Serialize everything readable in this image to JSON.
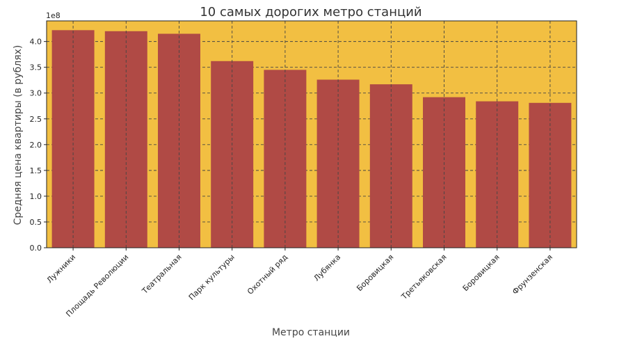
{
  "chart_data": {
    "type": "bar",
    "title": "10 самых дорогих метро станций",
    "xlabel": "Метро станции",
    "ylabel": "Средняя цена квартиры (в рублях)",
    "y_multiplier_label": "1e8",
    "categories": [
      "Лужники",
      "Площадь Революции",
      "Театральная",
      "Парк культуры",
      "Охотный ряд",
      "Лубянка",
      "Боровицкая",
      "Третьяковская",
      "Боровицкая",
      "Фрунзенская"
    ],
    "values": [
      4.22,
      4.2,
      4.15,
      3.62,
      3.45,
      3.26,
      3.17,
      2.92,
      2.84,
      2.81
    ],
    "ylim": [
      0,
      4.4
    ],
    "yticks": [
      "0.0",
      "0.5",
      "1.0",
      "1.5",
      "2.0",
      "2.5",
      "3.0",
      "3.5",
      "4.0"
    ],
    "grid": true,
    "colors": {
      "plot_background": "#f2bf42",
      "bar": "#b04a45",
      "grid": "#444444"
    }
  }
}
